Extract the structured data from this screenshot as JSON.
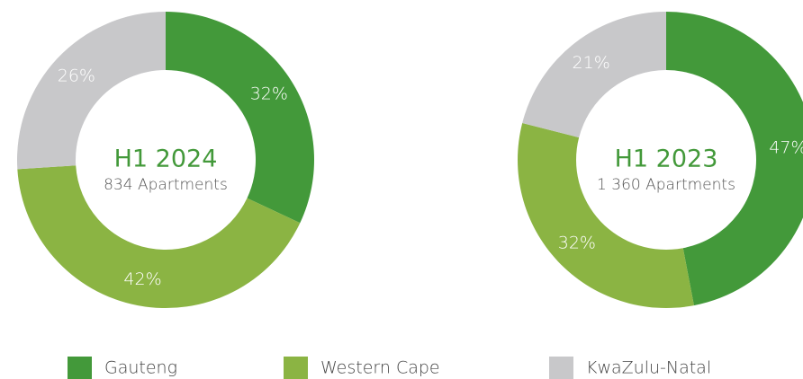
{
  "chart_data": [
    {
      "type": "pie",
      "title": "H1 2024",
      "subtitle": "834 Apartments",
      "categories": [
        "Gauteng",
        "Western Cape",
        "KwaZulu-Natal"
      ],
      "values": [
        32,
        42,
        26
      ],
      "value_labels": [
        "32%",
        "42%",
        "26%"
      ],
      "colors": [
        "#43993a",
        "#8bb443",
        "#c8c8ca"
      ]
    },
    {
      "type": "pie",
      "title": "H1 2023",
      "subtitle": "1 360 Apartments",
      "categories": [
        "Gauteng",
        "Western Cape",
        "KwaZulu-Natal"
      ],
      "values": [
        47,
        32,
        21
      ],
      "value_labels": [
        "47%",
        "32%",
        "21%"
      ],
      "colors": [
        "#43993a",
        "#8bb443",
        "#c8c8ca"
      ]
    }
  ]
}
